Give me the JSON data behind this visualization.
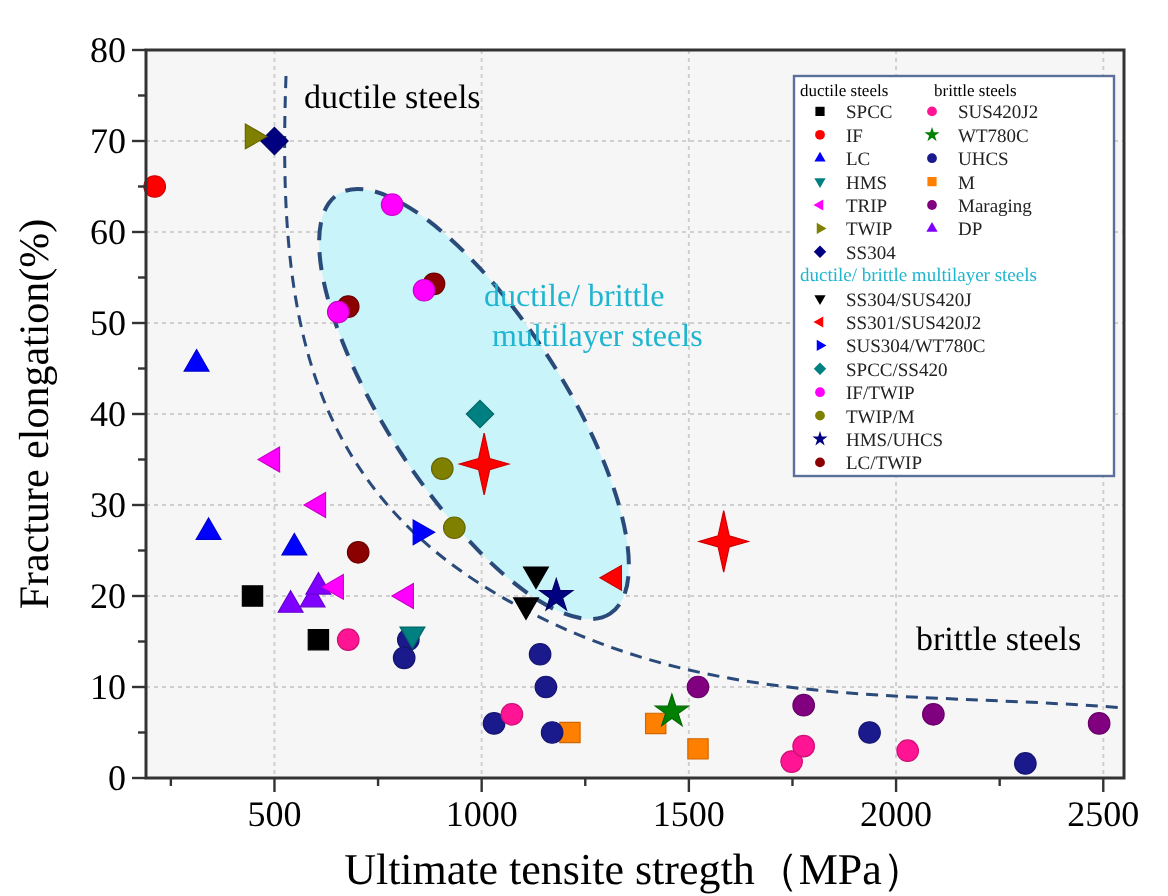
{
  "chart_data": {
    "type": "scatter",
    "xlabel": "Ultimate tensite stregth（MPa）",
    "ylabel": "Fracture elongation(%)",
    "xlim": [
      190,
      2550
    ],
    "xticks": [
      {
        "value": 250,
        "label": null
      },
      500,
      {
        "value": 750,
        "label": null
      },
      1000,
      {
        "value": 1250,
        "label": null
      },
      1500,
      {
        "value": 1750,
        "label": null
      },
      2000,
      {
        "value": 2250,
        "label": null
      },
      2500
    ],
    "ylim": [
      0,
      80
    ],
    "yticks": [
      0,
      {
        "value": 5,
        "label": null
      },
      10,
      {
        "value": 15,
        "label": null
      },
      20,
      {
        "value": 25,
        "label": null
      },
      30,
      {
        "value": 35,
        "label": null
      },
      40,
      {
        "value": 45,
        "label": null
      },
      50,
      {
        "value": 55,
        "label": null
      },
      60,
      {
        "value": 65,
        "label": null
      },
      70,
      {
        "value": 75,
        "label": null
      },
      80
    ],
    "grid": true,
    "legend": "top right",
    "annotations": [
      "ductile steels",
      "ductile/ brittle\nmultilayer steels",
      "brittle steels",
      "ductile steels",
      "brittle steels",
      "ductile/ brittle multilayer steels"
    ],
    "series": [
      {
        "name": "SPCC",
        "color": "#000000",
        "marker": "square",
        "x": [
          447,
          606
        ],
        "values": [
          20,
          15.2
        ]
      },
      {
        "name": "IF",
        "color": "#ff0000",
        "marker": "circle",
        "x": [
          211
        ],
        "values": [
          65
        ]
      },
      {
        "name": "LC",
        "color": "#0000ff",
        "marker": "triangle",
        "x": [
          312,
          341,
          548
        ],
        "values": [
          45.5,
          27,
          25.3
        ]
      },
      {
        "name": "HMS",
        "color": "#008080",
        "marker": "triangle-down",
        "x": [
          833
        ],
        "values": [
          15.8
        ]
      },
      {
        "name": "TRIP",
        "color": "#ff00ff",
        "marker": "triangle-left",
        "x": [
          495,
          606,
          649,
          818
        ],
        "values": [
          35,
          30,
          21,
          20
        ]
      },
      {
        "name": "TWIP",
        "color": "#808000",
        "marker": "triangle-right",
        "x": [
          447
        ],
        "values": [
          70.5
        ]
      },
      {
        "name": "SS304",
        "color": "#000080",
        "marker": "diamond",
        "x": [
          500
        ],
        "values": [
          70
        ]
      },
      {
        "name": "SUS420J2",
        "color": "#ff1493",
        "marker": "circle",
        "x": [
          678,
          1073,
          1748,
          1777,
          2028
        ],
        "values": [
          15.2,
          7,
          1.8,
          3.5,
          3
        ]
      },
      {
        "name": "WT780C",
        "color": "#008000",
        "marker": "star",
        "x": [
          1459
        ],
        "values": [
          7.3
        ]
      },
      {
        "name": "UHCS",
        "color": "#1a1a8c",
        "marker": "circle",
        "x": [
          823,
          813,
          1030,
          1141,
          1155,
          1170,
          1936,
          2312
        ],
        "values": [
          15.2,
          13.2,
          6,
          13.6,
          10,
          5,
          5,
          1.6
        ]
      },
      {
        "name": "M",
        "color": "#ff8000",
        "marker": "square",
        "x": [
          1213,
          1420,
          1522
        ],
        "values": [
          5,
          6,
          3.2
        ]
      },
      {
        "name": "Maraging",
        "color": "#800080",
        "marker": "circle",
        "x": [
          1522,
          1777,
          2090,
          2490
        ],
        "values": [
          10,
          8,
          7,
          6
        ]
      },
      {
        "name": "DP",
        "color": "#8000ff",
        "marker": "triangle",
        "x": [
          539,
          592,
          606
        ],
        "values": [
          19,
          19.6,
          21
        ]
      },
      {
        "name": "SS304/SUS420J",
        "color": "#000000",
        "marker": "triangle-down",
        "x": [
          1131,
          1107
        ],
        "values": [
          22.4,
          19
        ]
      },
      {
        "name": "SS301/SUS420J2",
        "color": "#ff0000",
        "marker": "triangle-left",
        "x": [
          1320
        ],
        "values": [
          22
        ]
      },
      {
        "name": "SUS304/WT780C",
        "color": "#0000ff",
        "marker": "triangle-right",
        "x": [
          852
        ],
        "values": [
          27
        ]
      },
      {
        "name": "SPCC/SS420",
        "color": "#008080",
        "marker": "diamond",
        "x": [
          996
        ],
        "values": [
          40
        ]
      },
      {
        "name": "IF/TWIP",
        "color": "#ff00ff",
        "marker": "circle",
        "x": [
          784,
          861,
          654
        ],
        "values": [
          63,
          53.6,
          51.2
        ]
      },
      {
        "name": "TWIP/M",
        "color": "#808000",
        "marker": "circle",
        "x": [
          905,
          934
        ],
        "values": [
          34,
          27.5
        ]
      },
      {
        "name": "HMS/UHCS",
        "color": "#000080",
        "marker": "star",
        "x": [
          1180
        ],
        "values": [
          20
        ]
      },
      {
        "name": "LC/TWIP",
        "color": "#8b0000",
        "marker": "circle",
        "x": [
          678,
          885,
          702
        ],
        "values": [
          51.8,
          54.3,
          24.8
        ]
      },
      {
        "color": "#ff0000",
        "marker": "cross",
        "x": [
          1006,
          1584
        ],
        "values": [
          34.5,
          26
        ]
      }
    ]
  }
}
